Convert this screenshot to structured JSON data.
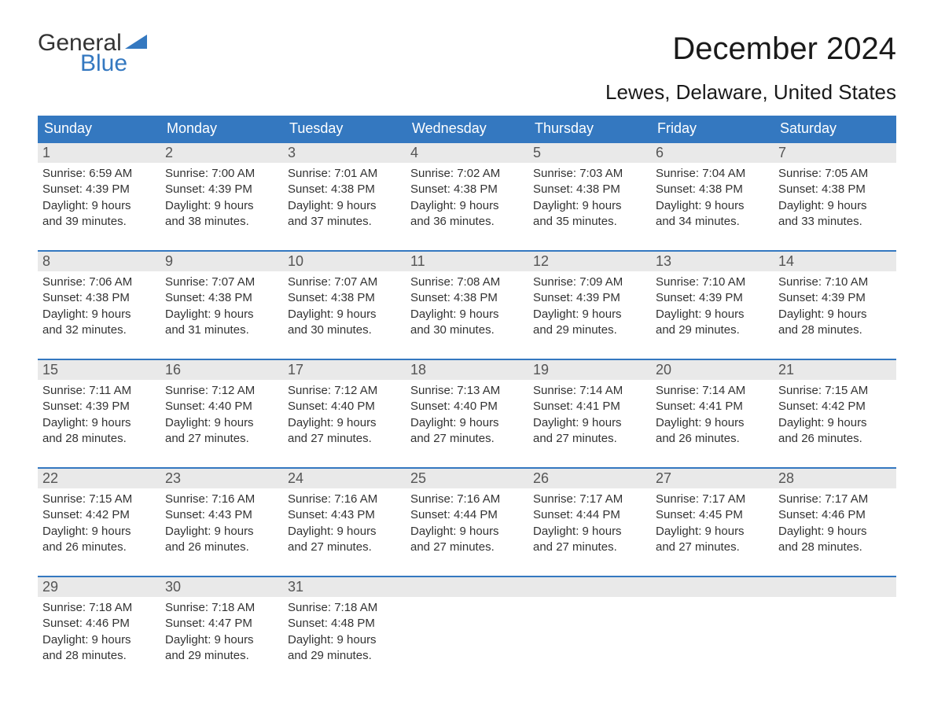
{
  "brand": {
    "line1": "General",
    "line2": "Blue",
    "accent_color": "#3478c0"
  },
  "title": "December 2024",
  "location": "Lewes, Delaware, United States",
  "header_bg": "#3478c0",
  "header_text_color": "#ffffff",
  "daynum_bg": "#e9e9e9",
  "week_border_color": "#3478c0",
  "days_of_week": [
    "Sunday",
    "Monday",
    "Tuesday",
    "Wednesday",
    "Thursday",
    "Friday",
    "Saturday"
  ],
  "weeks": [
    [
      {
        "n": "1",
        "sunrise": "Sunrise: 6:59 AM",
        "sunset": "Sunset: 4:39 PM",
        "day1": "Daylight: 9 hours",
        "day2": "and 39 minutes."
      },
      {
        "n": "2",
        "sunrise": "Sunrise: 7:00 AM",
        "sunset": "Sunset: 4:39 PM",
        "day1": "Daylight: 9 hours",
        "day2": "and 38 minutes."
      },
      {
        "n": "3",
        "sunrise": "Sunrise: 7:01 AM",
        "sunset": "Sunset: 4:38 PM",
        "day1": "Daylight: 9 hours",
        "day2": "and 37 minutes."
      },
      {
        "n": "4",
        "sunrise": "Sunrise: 7:02 AM",
        "sunset": "Sunset: 4:38 PM",
        "day1": "Daylight: 9 hours",
        "day2": "and 36 minutes."
      },
      {
        "n": "5",
        "sunrise": "Sunrise: 7:03 AM",
        "sunset": "Sunset: 4:38 PM",
        "day1": "Daylight: 9 hours",
        "day2": "and 35 minutes."
      },
      {
        "n": "6",
        "sunrise": "Sunrise: 7:04 AM",
        "sunset": "Sunset: 4:38 PM",
        "day1": "Daylight: 9 hours",
        "day2": "and 34 minutes."
      },
      {
        "n": "7",
        "sunrise": "Sunrise: 7:05 AM",
        "sunset": "Sunset: 4:38 PM",
        "day1": "Daylight: 9 hours",
        "day2": "and 33 minutes."
      }
    ],
    [
      {
        "n": "8",
        "sunrise": "Sunrise: 7:06 AM",
        "sunset": "Sunset: 4:38 PM",
        "day1": "Daylight: 9 hours",
        "day2": "and 32 minutes."
      },
      {
        "n": "9",
        "sunrise": "Sunrise: 7:07 AM",
        "sunset": "Sunset: 4:38 PM",
        "day1": "Daylight: 9 hours",
        "day2": "and 31 minutes."
      },
      {
        "n": "10",
        "sunrise": "Sunrise: 7:07 AM",
        "sunset": "Sunset: 4:38 PM",
        "day1": "Daylight: 9 hours",
        "day2": "and 30 minutes."
      },
      {
        "n": "11",
        "sunrise": "Sunrise: 7:08 AM",
        "sunset": "Sunset: 4:38 PM",
        "day1": "Daylight: 9 hours",
        "day2": "and 30 minutes."
      },
      {
        "n": "12",
        "sunrise": "Sunrise: 7:09 AM",
        "sunset": "Sunset: 4:39 PM",
        "day1": "Daylight: 9 hours",
        "day2": "and 29 minutes."
      },
      {
        "n": "13",
        "sunrise": "Sunrise: 7:10 AM",
        "sunset": "Sunset: 4:39 PM",
        "day1": "Daylight: 9 hours",
        "day2": "and 29 minutes."
      },
      {
        "n": "14",
        "sunrise": "Sunrise: 7:10 AM",
        "sunset": "Sunset: 4:39 PM",
        "day1": "Daylight: 9 hours",
        "day2": "and 28 minutes."
      }
    ],
    [
      {
        "n": "15",
        "sunrise": "Sunrise: 7:11 AM",
        "sunset": "Sunset: 4:39 PM",
        "day1": "Daylight: 9 hours",
        "day2": "and 28 minutes."
      },
      {
        "n": "16",
        "sunrise": "Sunrise: 7:12 AM",
        "sunset": "Sunset: 4:40 PM",
        "day1": "Daylight: 9 hours",
        "day2": "and 27 minutes."
      },
      {
        "n": "17",
        "sunrise": "Sunrise: 7:12 AM",
        "sunset": "Sunset: 4:40 PM",
        "day1": "Daylight: 9 hours",
        "day2": "and 27 minutes."
      },
      {
        "n": "18",
        "sunrise": "Sunrise: 7:13 AM",
        "sunset": "Sunset: 4:40 PM",
        "day1": "Daylight: 9 hours",
        "day2": "and 27 minutes."
      },
      {
        "n": "19",
        "sunrise": "Sunrise: 7:14 AM",
        "sunset": "Sunset: 4:41 PM",
        "day1": "Daylight: 9 hours",
        "day2": "and 27 minutes."
      },
      {
        "n": "20",
        "sunrise": "Sunrise: 7:14 AM",
        "sunset": "Sunset: 4:41 PM",
        "day1": "Daylight: 9 hours",
        "day2": "and 26 minutes."
      },
      {
        "n": "21",
        "sunrise": "Sunrise: 7:15 AM",
        "sunset": "Sunset: 4:42 PM",
        "day1": "Daylight: 9 hours",
        "day2": "and 26 minutes."
      }
    ],
    [
      {
        "n": "22",
        "sunrise": "Sunrise: 7:15 AM",
        "sunset": "Sunset: 4:42 PM",
        "day1": "Daylight: 9 hours",
        "day2": "and 26 minutes."
      },
      {
        "n": "23",
        "sunrise": "Sunrise: 7:16 AM",
        "sunset": "Sunset: 4:43 PM",
        "day1": "Daylight: 9 hours",
        "day2": "and 26 minutes."
      },
      {
        "n": "24",
        "sunrise": "Sunrise: 7:16 AM",
        "sunset": "Sunset: 4:43 PM",
        "day1": "Daylight: 9 hours",
        "day2": "and 27 minutes."
      },
      {
        "n": "25",
        "sunrise": "Sunrise: 7:16 AM",
        "sunset": "Sunset: 4:44 PM",
        "day1": "Daylight: 9 hours",
        "day2": "and 27 minutes."
      },
      {
        "n": "26",
        "sunrise": "Sunrise: 7:17 AM",
        "sunset": "Sunset: 4:44 PM",
        "day1": "Daylight: 9 hours",
        "day2": "and 27 minutes."
      },
      {
        "n": "27",
        "sunrise": "Sunrise: 7:17 AM",
        "sunset": "Sunset: 4:45 PM",
        "day1": "Daylight: 9 hours",
        "day2": "and 27 minutes."
      },
      {
        "n": "28",
        "sunrise": "Sunrise: 7:17 AM",
        "sunset": "Sunset: 4:46 PM",
        "day1": "Daylight: 9 hours",
        "day2": "and 28 minutes."
      }
    ],
    [
      {
        "n": "29",
        "sunrise": "Sunrise: 7:18 AM",
        "sunset": "Sunset: 4:46 PM",
        "day1": "Daylight: 9 hours",
        "day2": "and 28 minutes."
      },
      {
        "n": "30",
        "sunrise": "Sunrise: 7:18 AM",
        "sunset": "Sunset: 4:47 PM",
        "day1": "Daylight: 9 hours",
        "day2": "and 29 minutes."
      },
      {
        "n": "31",
        "sunrise": "Sunrise: 7:18 AM",
        "sunset": "Sunset: 4:48 PM",
        "day1": "Daylight: 9 hours",
        "day2": "and 29 minutes."
      },
      {
        "empty": true
      },
      {
        "empty": true
      },
      {
        "empty": true
      },
      {
        "empty": true
      }
    ]
  ]
}
